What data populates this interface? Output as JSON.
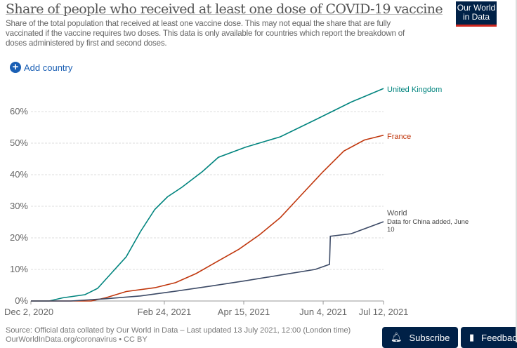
{
  "header": {
    "title": "Share of people who received at least one dose of COVID-19 vaccine",
    "subtitle": "Share of the total population that received at least one vaccine dose. This may not equal the share that are fully vaccinated if the vaccine requires two doses. This data is only available for countries which report the breakdown of doses administered by first and second doses.",
    "logo": "Our World in Data",
    "add_country": "Add country"
  },
  "chart_data": {
    "type": "line",
    "title": "Share of people who received at least one dose of COVID-19 vaccine",
    "xlabel": "",
    "ylabel": "",
    "x_unit": "days since Dec 2, 2020",
    "xlim": [
      0,
      222
    ],
    "ylim": [
      0,
      70
    ],
    "x_ticks": [
      {
        "day": 0,
        "label": "Dec 2, 2020"
      },
      {
        "day": 84,
        "label": "Feb 24, 2021"
      },
      {
        "day": 134,
        "label": "Apr 15, 2021"
      },
      {
        "day": 184,
        "label": "Jun 4, 2021"
      },
      {
        "day": 222,
        "label": "Jul 12, 2021"
      }
    ],
    "y_ticks": [
      {
        "v": 0,
        "label": "0%"
      },
      {
        "v": 10,
        "label": "10%"
      },
      {
        "v": 20,
        "label": "20%"
      },
      {
        "v": 30,
        "label": "30%"
      },
      {
        "v": 40,
        "label": "40%"
      },
      {
        "v": 50,
        "label": "50%"
      },
      {
        "v": 60,
        "label": "60%"
      }
    ],
    "grid": true,
    "series": [
      {
        "name": "United Kingdom",
        "color": "#00847e",
        "points": [
          [
            0,
            0
          ],
          [
            11.5,
            0
          ],
          [
            20,
            1
          ],
          [
            34,
            2
          ],
          [
            42,
            4
          ],
          [
            51,
            9
          ],
          [
            60,
            14
          ],
          [
            69,
            22
          ],
          [
            78,
            29
          ],
          [
            86,
            33
          ],
          [
            95,
            36
          ],
          [
            108,
            41
          ],
          [
            118,
            45.5
          ],
          [
            135,
            48.7
          ],
          [
            157,
            52
          ],
          [
            179.5,
            57.5
          ],
          [
            201.6,
            63
          ],
          [
            222,
            67.3
          ]
        ]
      },
      {
        "name": "France",
        "color": "#c0360c",
        "points": [
          [
            0,
            0
          ],
          [
            38,
            0
          ],
          [
            47,
            1
          ],
          [
            60,
            3
          ],
          [
            78,
            4.2
          ],
          [
            91,
            5.8
          ],
          [
            104,
            8.7
          ],
          [
            118,
            12.7
          ],
          [
            131,
            16.4
          ],
          [
            144,
            21
          ],
          [
            157,
            26.4
          ],
          [
            171,
            34
          ],
          [
            184,
            41
          ],
          [
            197,
            47.5
          ],
          [
            210,
            51
          ],
          [
            222,
            52.5
          ]
        ]
      },
      {
        "name": "World",
        "color": "#3c4a66",
        "points": [
          [
            0,
            0
          ],
          [
            25,
            0
          ],
          [
            47,
            0.7
          ],
          [
            69,
            1.6
          ],
          [
            91,
            3.1
          ],
          [
            113,
            4.7
          ],
          [
            135,
            6.4
          ],
          [
            157,
            8.2
          ],
          [
            179,
            10
          ],
          [
            188,
            11.6
          ],
          [
            188.5,
            20.5
          ],
          [
            201.6,
            21.3
          ],
          [
            222,
            25.1
          ]
        ]
      }
    ],
    "annotations": [
      {
        "series": "World",
        "text": "Data for China added, June 10"
      }
    ]
  },
  "footer": {
    "source": "Source: Official data collated by Our World in Data – Last updated 13 July 2021, 12:00 (London time)",
    "link": "OurWorldInData.org/coronavirus • CC BY",
    "subscribe": "Subscribe",
    "feedback": "Feedback"
  }
}
